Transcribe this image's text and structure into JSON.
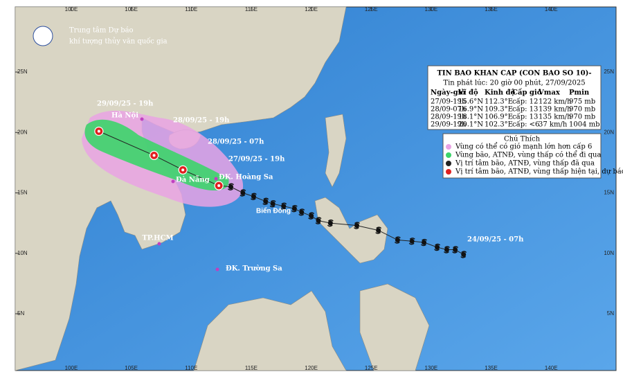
{
  "header": {
    "org_line1": "Trung tâm Dự báo",
    "org_line2": "khí tượng thủy văn quốc gia"
  },
  "bulletin": {
    "title": "TIN BAO KHAN CAP (CON BAO SO 10)-",
    "issued": "Tin phát lúc: 20 giờ 00 phút, 27/09/2025",
    "columns": [
      "Ngày-giờ",
      "Vĩ độ",
      "Kinh độ",
      "Cấp gió",
      "Vmax",
      "Pmin"
    ],
    "rows": [
      [
        "27/09-19h",
        "15.6°N",
        "112.3°E",
        "cấp: 12",
        "122 km/h",
        "975 mb"
      ],
      [
        "28/09-07h",
        "16.9°N",
        "109.3°E",
        "cấp: 13",
        "139 km/h",
        "970 mb"
      ],
      [
        "28/09-19h",
        "18.1°N",
        "106.9°E",
        "cấp: 13",
        "135 km/h",
        "970 mb"
      ],
      [
        "29/09-19h",
        "20.1°N",
        "102.3°E",
        "cấp: <6",
        "37 km/h",
        "1004 mb"
      ]
    ]
  },
  "legend": {
    "title": "Chú Thích",
    "items": [
      "Vùng có thể có gió mạnh lớn hơn cấp 6",
      "Vùng bão, ATNĐ, vùng thấp có thể đi qua",
      "Vị trí tâm bão, ATNĐ, vùng thấp đã qua",
      "Vị trí tâm bão, ATNĐ, vùng thấp hiện tại, dự báo"
    ]
  },
  "map": {
    "lon_ticks": [
      {
        "value": 100,
        "label": "100E"
      },
      {
        "value": 105,
        "label": "105E"
      },
      {
        "value": 110,
        "label": "110E"
      },
      {
        "value": 115,
        "label": "115E"
      },
      {
        "value": 120,
        "label": "120E"
      },
      {
        "value": 125,
        "label": "125E"
      },
      {
        "value": 130,
        "label": "130E"
      },
      {
        "value": 135,
        "label": "135E"
      },
      {
        "value": 140,
        "label": "140E"
      }
    ],
    "lat_ticks": [
      {
        "value": 25,
        "label": "25N"
      },
      {
        "value": 20,
        "label": "20N"
      },
      {
        "value": 15,
        "label": "15N"
      },
      {
        "value": 10,
        "label": "10N"
      },
      {
        "value": 5,
        "label": "5N"
      }
    ],
    "places": [
      "Hà Nội",
      "Đà Nẵng",
      "ĐK. Hoàng Sa",
      "TP.HCM",
      "ĐK. Trường Sa"
    ],
    "sea_label": "Biển Đông",
    "track_labels": [
      "29/09/25 - 19h",
      "28/09/25 - 19h",
      "28/09/25 - 07h",
      "27/09/25 - 19h",
      "24/09/25 - 07h"
    ],
    "past_track": [
      [
        132.7,
        9.9
      ],
      [
        132.0,
        10.3
      ],
      [
        131.3,
        10.3
      ],
      [
        130.5,
        10.5
      ],
      [
        129.4,
        10.9
      ],
      [
        128.4,
        11.0
      ],
      [
        127.2,
        11.1
      ],
      [
        125.6,
        11.9
      ],
      [
        123.8,
        12.3
      ],
      [
        121.6,
        12.5
      ],
      [
        120.6,
        12.7
      ],
      [
        120.0,
        13.1
      ],
      [
        119.2,
        13.4
      ],
      [
        118.6,
        13.7
      ],
      [
        117.7,
        13.9
      ],
      [
        116.8,
        14.1
      ],
      [
        116.2,
        14.3
      ],
      [
        115.2,
        14.7
      ],
      [
        114.3,
        15.0
      ],
      [
        113.3,
        15.5
      ]
    ]
  }
}
